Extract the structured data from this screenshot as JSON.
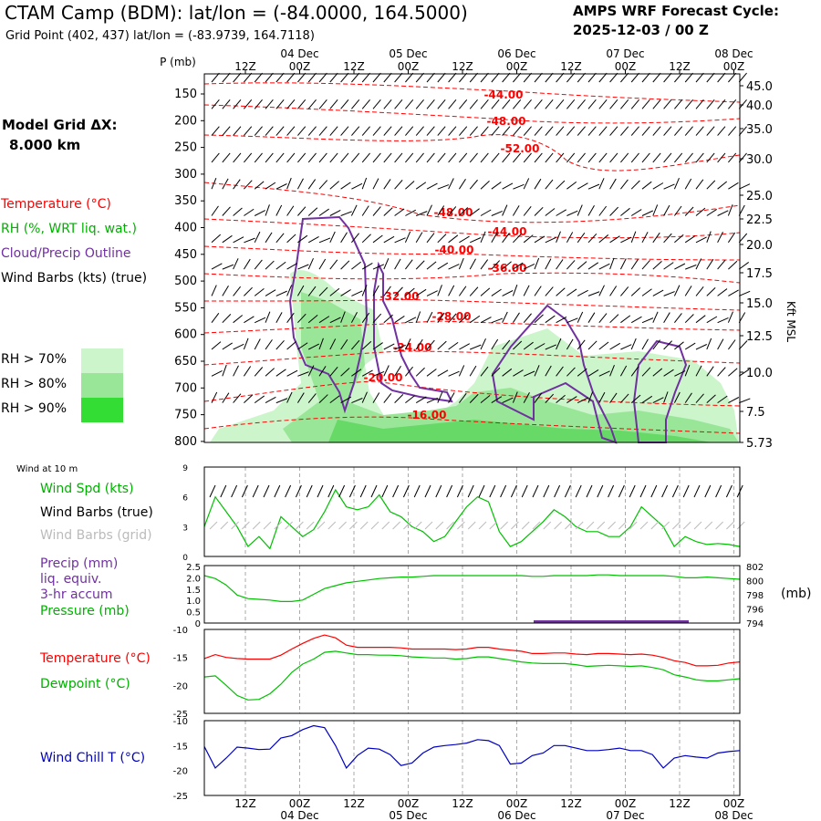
{
  "header": {
    "title": "CTAM Camp (BDM):  lat/lon = (-84.0000, 164.5000)",
    "grid_point": "Grid Point (402, 437) lat/lon = (-83.9739, 164.7118)",
    "cycle_line1": "AMPS WRF Forecast Cycle:",
    "cycle_line2": "2025-12-03 / 00  Z"
  },
  "legend": {
    "model_grid_line1": "Model Grid ΔX:",
    "model_grid_line2": "8.000 km",
    "temperature": "Temperature (°C)",
    "rh": "RH (%, WRT liq. wat.)",
    "cloud": "Cloud/Precip Outline",
    "wind": "Wind Barbs (kts) (true)",
    "rh70": "RH > 70%",
    "rh80": "RH > 80%",
    "rh90": "RH > 90%",
    "wind10m": "Wind at 10 m",
    "wind_spd": "Wind Spd (kts)",
    "wind_true": "Wind Barbs (true)",
    "wind_grid": "Wind Barbs (grid)",
    "precip1": "Precip (mm)",
    "precip2": "liq. equiv.",
    "precip3": "3-hr accum",
    "pressure": "Pressure (mb)",
    "mb_unit": "(mb)",
    "t2m": "Temperature (°C)",
    "td2m": "Dewpoint (°C)",
    "windchill": "Wind Chill T (°C)",
    "kft": "Kft MSL"
  },
  "colors": {
    "temp": "#ff0000",
    "rh_green": "#00c000",
    "cloud": "#7030a0",
    "windchill": "#0000c0",
    "rh70": "#ccf5cc",
    "rh80": "#99e699",
    "rh90": "#33dd33",
    "grid": "#aaaaaa"
  },
  "time_axis": {
    "tick_labels": [
      "12Z",
      "00Z",
      "12Z",
      "00Z",
      "12Z",
      "00Z",
      "12Z",
      "00Z",
      "12Z",
      "00Z"
    ],
    "day_labels": [
      "04 Dec",
      "05 Dec",
      "06 Dec",
      "07 Dec",
      "08 Dec"
    ]
  },
  "chart_data": [
    {
      "type": "heatmap",
      "name": "cross-section",
      "ylabel": "P (mb)",
      "y_ticks": [
        "150",
        "200",
        "250",
        "300",
        "350",
        "400",
        "450",
        "500",
        "550",
        "600",
        "650",
        "700",
        "750",
        "800"
      ],
      "right_ticks": [
        "45.0",
        "40.0",
        "35.0",
        "30.0",
        "25.0",
        "22.5",
        "20.0",
        "17.5",
        "15.0",
        "12.5",
        "10.0",
        "7.5",
        "5.73"
      ],
      "temp_contour_labels": [
        "-44.00",
        "-48.00",
        "-52.00",
        "-48.00",
        "-44.00",
        "-40.00",
        "-36.00",
        "-32.00",
        "-28.00",
        "-24.00",
        "-20.00",
        "-16.00"
      ]
    },
    {
      "type": "line",
      "name": "10m wind speed",
      "ylim": [
        0,
        9
      ],
      "y_ticks": [
        "0",
        "3",
        "6",
        "9"
      ],
      "values": [
        3,
        6,
        4.5,
        3,
        1,
        2,
        0.8,
        4,
        3,
        2,
        2.7,
        4.5,
        6.7,
        5,
        4.7,
        5,
        6.2,
        4.5,
        4,
        3,
        2.5,
        1.5,
        2,
        3.5,
        5,
        6,
        5.5,
        2.5,
        1,
        1.5,
        2.5,
        3.5,
        4.7,
        4,
        3,
        2.5,
        2.5,
        2,
        2,
        3,
        5,
        4,
        3,
        1,
        2,
        1.5,
        1.2,
        1.3,
        1.2,
        1
      ]
    },
    {
      "type": "line",
      "name": "pressure",
      "ylim": [
        794,
        802
      ],
      "y_ticks_left": [
        "0",
        "0.5",
        "1.0",
        "1.5",
        "2.0",
        "2.5"
      ],
      "y_ticks_right": [
        "794",
        "796",
        "798",
        "800",
        "802"
      ],
      "values": [
        800.6,
        800.2,
        799.3,
        797.9,
        797.4,
        797.3,
        797.2,
        797.0,
        797.0,
        797.2,
        798.0,
        798.8,
        799.2,
        799.6,
        799.8,
        800.0,
        800.2,
        800.3,
        800.4,
        800.4,
        800.5,
        800.6,
        800.6,
        800.6,
        800.6,
        800.6,
        800.6,
        800.6,
        800.6,
        800.6,
        800.5,
        800.5,
        800.6,
        800.6,
        800.6,
        800.6,
        800.7,
        800.7,
        800.6,
        800.6,
        800.6,
        800.6,
        800.6,
        800.5,
        800.3,
        800.3,
        800.4,
        800.3,
        800.2,
        800.1
      ]
    },
    {
      "type": "line",
      "name": "2m temperature & dewpoint",
      "ylim": [
        -25,
        -10
      ],
      "y_ticks": [
        "-10",
        "-15",
        "-20",
        "-25"
      ],
      "series": [
        {
          "name": "Temperature",
          "values": [
            -15.2,
            -14.5,
            -15,
            -15.2,
            -15.3,
            -15.3,
            -15.3,
            -14.6,
            -13.5,
            -12.5,
            -11.6,
            -11,
            -11.5,
            -12.8,
            -13.2,
            -13.2,
            -13.2,
            -13.2,
            -13.3,
            -13.5,
            -13.5,
            -13.5,
            -13.5,
            -13.6,
            -13.5,
            -13.2,
            -13.2,
            -13.5,
            -13.7,
            -13.9,
            -14.3,
            -14.3,
            -14.2,
            -14.2,
            -14.4,
            -14.5,
            -14.3,
            -14.3,
            -14.4,
            -14.5,
            -14.4,
            -14.6,
            -15,
            -15.6,
            -15.9,
            -16.5,
            -16.5,
            -16.4,
            -16,
            -15.8
          ]
        },
        {
          "name": "Dewpoint",
          "values": [
            -18.5,
            -18.3,
            -20,
            -21.8,
            -22.6,
            -22.5,
            -21.5,
            -19.8,
            -17.7,
            -16.2,
            -15.3,
            -14.1,
            -13.9,
            -14.2,
            -14.5,
            -14.5,
            -14.6,
            -14.6,
            -14.7,
            -14.9,
            -15,
            -15.1,
            -15.1,
            -15.3,
            -15.2,
            -14.9,
            -14.9,
            -15.2,
            -15.5,
            -15.8,
            -16,
            -16.1,
            -16.1,
            -16.1,
            -16.3,
            -16.6,
            -16.5,
            -16.4,
            -16.5,
            -16.6,
            -16.5,
            -16.8,
            -17.2,
            -18.1,
            -18.5,
            -19,
            -19.2,
            -19.2,
            -19,
            -18.8
          ]
        }
      ]
    },
    {
      "type": "line",
      "name": "wind chill",
      "ylim": [
        -25,
        -10
      ],
      "y_ticks": [
        "-10",
        "-15",
        "-20",
        "-25"
      ],
      "values": [
        -15.2,
        -19.5,
        -17.5,
        -15.3,
        -15.5,
        -15.8,
        -15.7,
        -13.5,
        -13,
        -11.8,
        -11,
        -11.4,
        -15,
        -19.5,
        -17,
        -15.5,
        -15.7,
        -16.8,
        -19,
        -18.5,
        -16.5,
        -15.3,
        -15,
        -14.8,
        -14.5,
        -13.8,
        -14,
        -15,
        -18.7,
        -18.5,
        -17,
        -16.5,
        -15,
        -15,
        -15.5,
        -16,
        -16,
        -15.8,
        -15.5,
        -16,
        -16,
        -16.8,
        -19.5,
        -17.5,
        -17,
        -17.3,
        -17.5,
        -16.5,
        -16.2,
        -16
      ]
    }
  ]
}
